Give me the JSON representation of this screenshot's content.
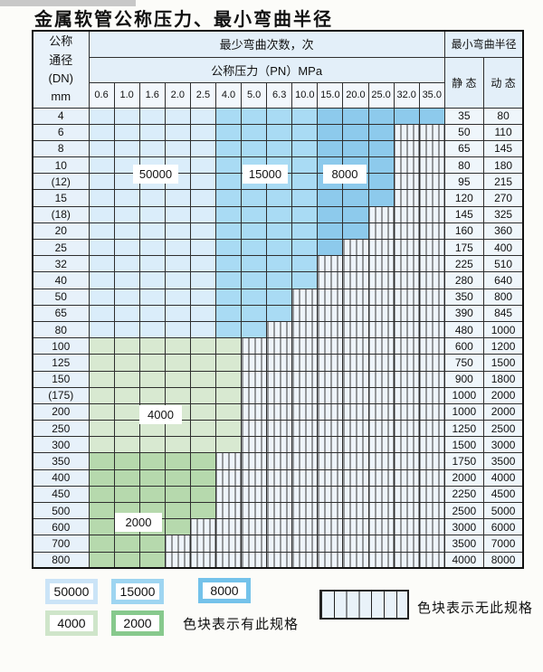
{
  "title": "金属软管公称压力、最小弯曲半径",
  "table": {
    "header": {
      "dn_lines": [
        "公称",
        "通径",
        "(DN)",
        "mm"
      ],
      "bend_cycles": "最少弯曲次数，次",
      "pressure": "公称压力（PN）MPa",
      "radius": "最小弯曲半径",
      "static": "静 态",
      "dynamic": "动 态",
      "pressure_columns": [
        "0.6",
        "1.0",
        "1.6",
        "2.0",
        "2.5",
        "4.0",
        "5.0",
        "6.3",
        "10.0",
        "15.0",
        "20.0",
        "25.0",
        "32.0",
        "35.0"
      ]
    },
    "zone_by_column": [
      "c50000",
      "c50000",
      "c50000",
      "c50000",
      "c50000",
      "c15000",
      "c15000",
      "c15000",
      "c15000",
      "c8000",
      "c8000",
      "c8000",
      "c8000",
      "c8000"
    ],
    "rows": [
      {
        "dn": "4",
        "static": "35",
        "dynamic": "80",
        "colored": 14,
        "fill": "blue"
      },
      {
        "dn": "6",
        "static": "50",
        "dynamic": "110",
        "colored": 12,
        "fill": "blue"
      },
      {
        "dn": "8",
        "static": "65",
        "dynamic": "145",
        "colored": 12,
        "fill": "blue"
      },
      {
        "dn": "10",
        "static": "80",
        "dynamic": "180",
        "colored": 12,
        "fill": "blue"
      },
      {
        "dn": "(12)",
        "static": "95",
        "dynamic": "215",
        "colored": 12,
        "fill": "blue"
      },
      {
        "dn": "15",
        "static": "120",
        "dynamic": "270",
        "colored": 12,
        "fill": "blue"
      },
      {
        "dn": "(18)",
        "static": "145",
        "dynamic": "325",
        "colored": 11,
        "fill": "blue"
      },
      {
        "dn": "20",
        "static": "160",
        "dynamic": "360",
        "colored": 11,
        "fill": "blue"
      },
      {
        "dn": "25",
        "static": "175",
        "dynamic": "400",
        "colored": 10,
        "fill": "blue"
      },
      {
        "dn": "32",
        "static": "225",
        "dynamic": "510",
        "colored": 9,
        "fill": "blue"
      },
      {
        "dn": "40",
        "static": "280",
        "dynamic": "640",
        "colored": 9,
        "fill": "blue"
      },
      {
        "dn": "50",
        "static": "350",
        "dynamic": "800",
        "colored": 8,
        "fill": "blue"
      },
      {
        "dn": "65",
        "static": "390",
        "dynamic": "845",
        "colored": 8,
        "fill": "blue"
      },
      {
        "dn": "80",
        "static": "480",
        "dynamic": "1000",
        "colored": 7,
        "fill": "blue"
      },
      {
        "dn": "100",
        "static": "600",
        "dynamic": "1200",
        "colored": 6,
        "fill": "c4000"
      },
      {
        "dn": "125",
        "static": "750",
        "dynamic": "1500",
        "colored": 6,
        "fill": "c4000"
      },
      {
        "dn": "150",
        "static": "900",
        "dynamic": "1800",
        "colored": 6,
        "fill": "c4000"
      },
      {
        "dn": "(175)",
        "static": "1000",
        "dynamic": "2000",
        "colored": 6,
        "fill": "c4000"
      },
      {
        "dn": "200",
        "static": "1000",
        "dynamic": "2000",
        "colored": 6,
        "fill": "c4000"
      },
      {
        "dn": "250",
        "static": "1250",
        "dynamic": "2500",
        "colored": 6,
        "fill": "c4000"
      },
      {
        "dn": "300",
        "static": "1500",
        "dynamic": "3000",
        "colored": 6,
        "fill": "c4000"
      },
      {
        "dn": "350",
        "static": "1750",
        "dynamic": "3500",
        "colored": 5,
        "fill": "c2000"
      },
      {
        "dn": "400",
        "static": "2000",
        "dynamic": "4000",
        "colored": 5,
        "fill": "c2000"
      },
      {
        "dn": "450",
        "static": "2250",
        "dynamic": "4500",
        "colored": 5,
        "fill": "c2000"
      },
      {
        "dn": "500",
        "static": "2500",
        "dynamic": "5000",
        "colored": 5,
        "fill": "c2000"
      },
      {
        "dn": "600",
        "static": "3000",
        "dynamic": "6000",
        "colored": 4,
        "fill": "c2000"
      },
      {
        "dn": "700",
        "static": "3500",
        "dynamic": "7000",
        "colored": 3,
        "fill": "c2000"
      },
      {
        "dn": "800",
        "static": "4000",
        "dynamic": "8000",
        "colored": 3,
        "fill": "c2000"
      }
    ]
  },
  "colors": {
    "c50000": "#daedfa",
    "c15000": "#a9dbf4",
    "c8000": "#8dcaec",
    "c4000": "#d8e9d1",
    "c2000": "#b6d9ad",
    "hatch_bg": "#eef4fa",
    "grid": "#2e2e2e"
  },
  "overlay_labels": [
    {
      "text": "50000"
    },
    {
      "text": "15000"
    },
    {
      "text": "8000"
    },
    {
      "text": "4000"
    },
    {
      "text": "2000"
    }
  ],
  "legend": {
    "blocks": [
      {
        "label": "50000",
        "color": "#cbe4f7"
      },
      {
        "label": "15000",
        "color": "#9ed5f1"
      },
      {
        "label": "8000",
        "color": "#74c2ea"
      },
      {
        "label": "4000",
        "color": "#cfe5ca"
      },
      {
        "label": "2000",
        "color": "#87c98d"
      }
    ],
    "has_spec_note": "色块表示有此规格",
    "no_spec_note": "色块表示无此规格"
  }
}
